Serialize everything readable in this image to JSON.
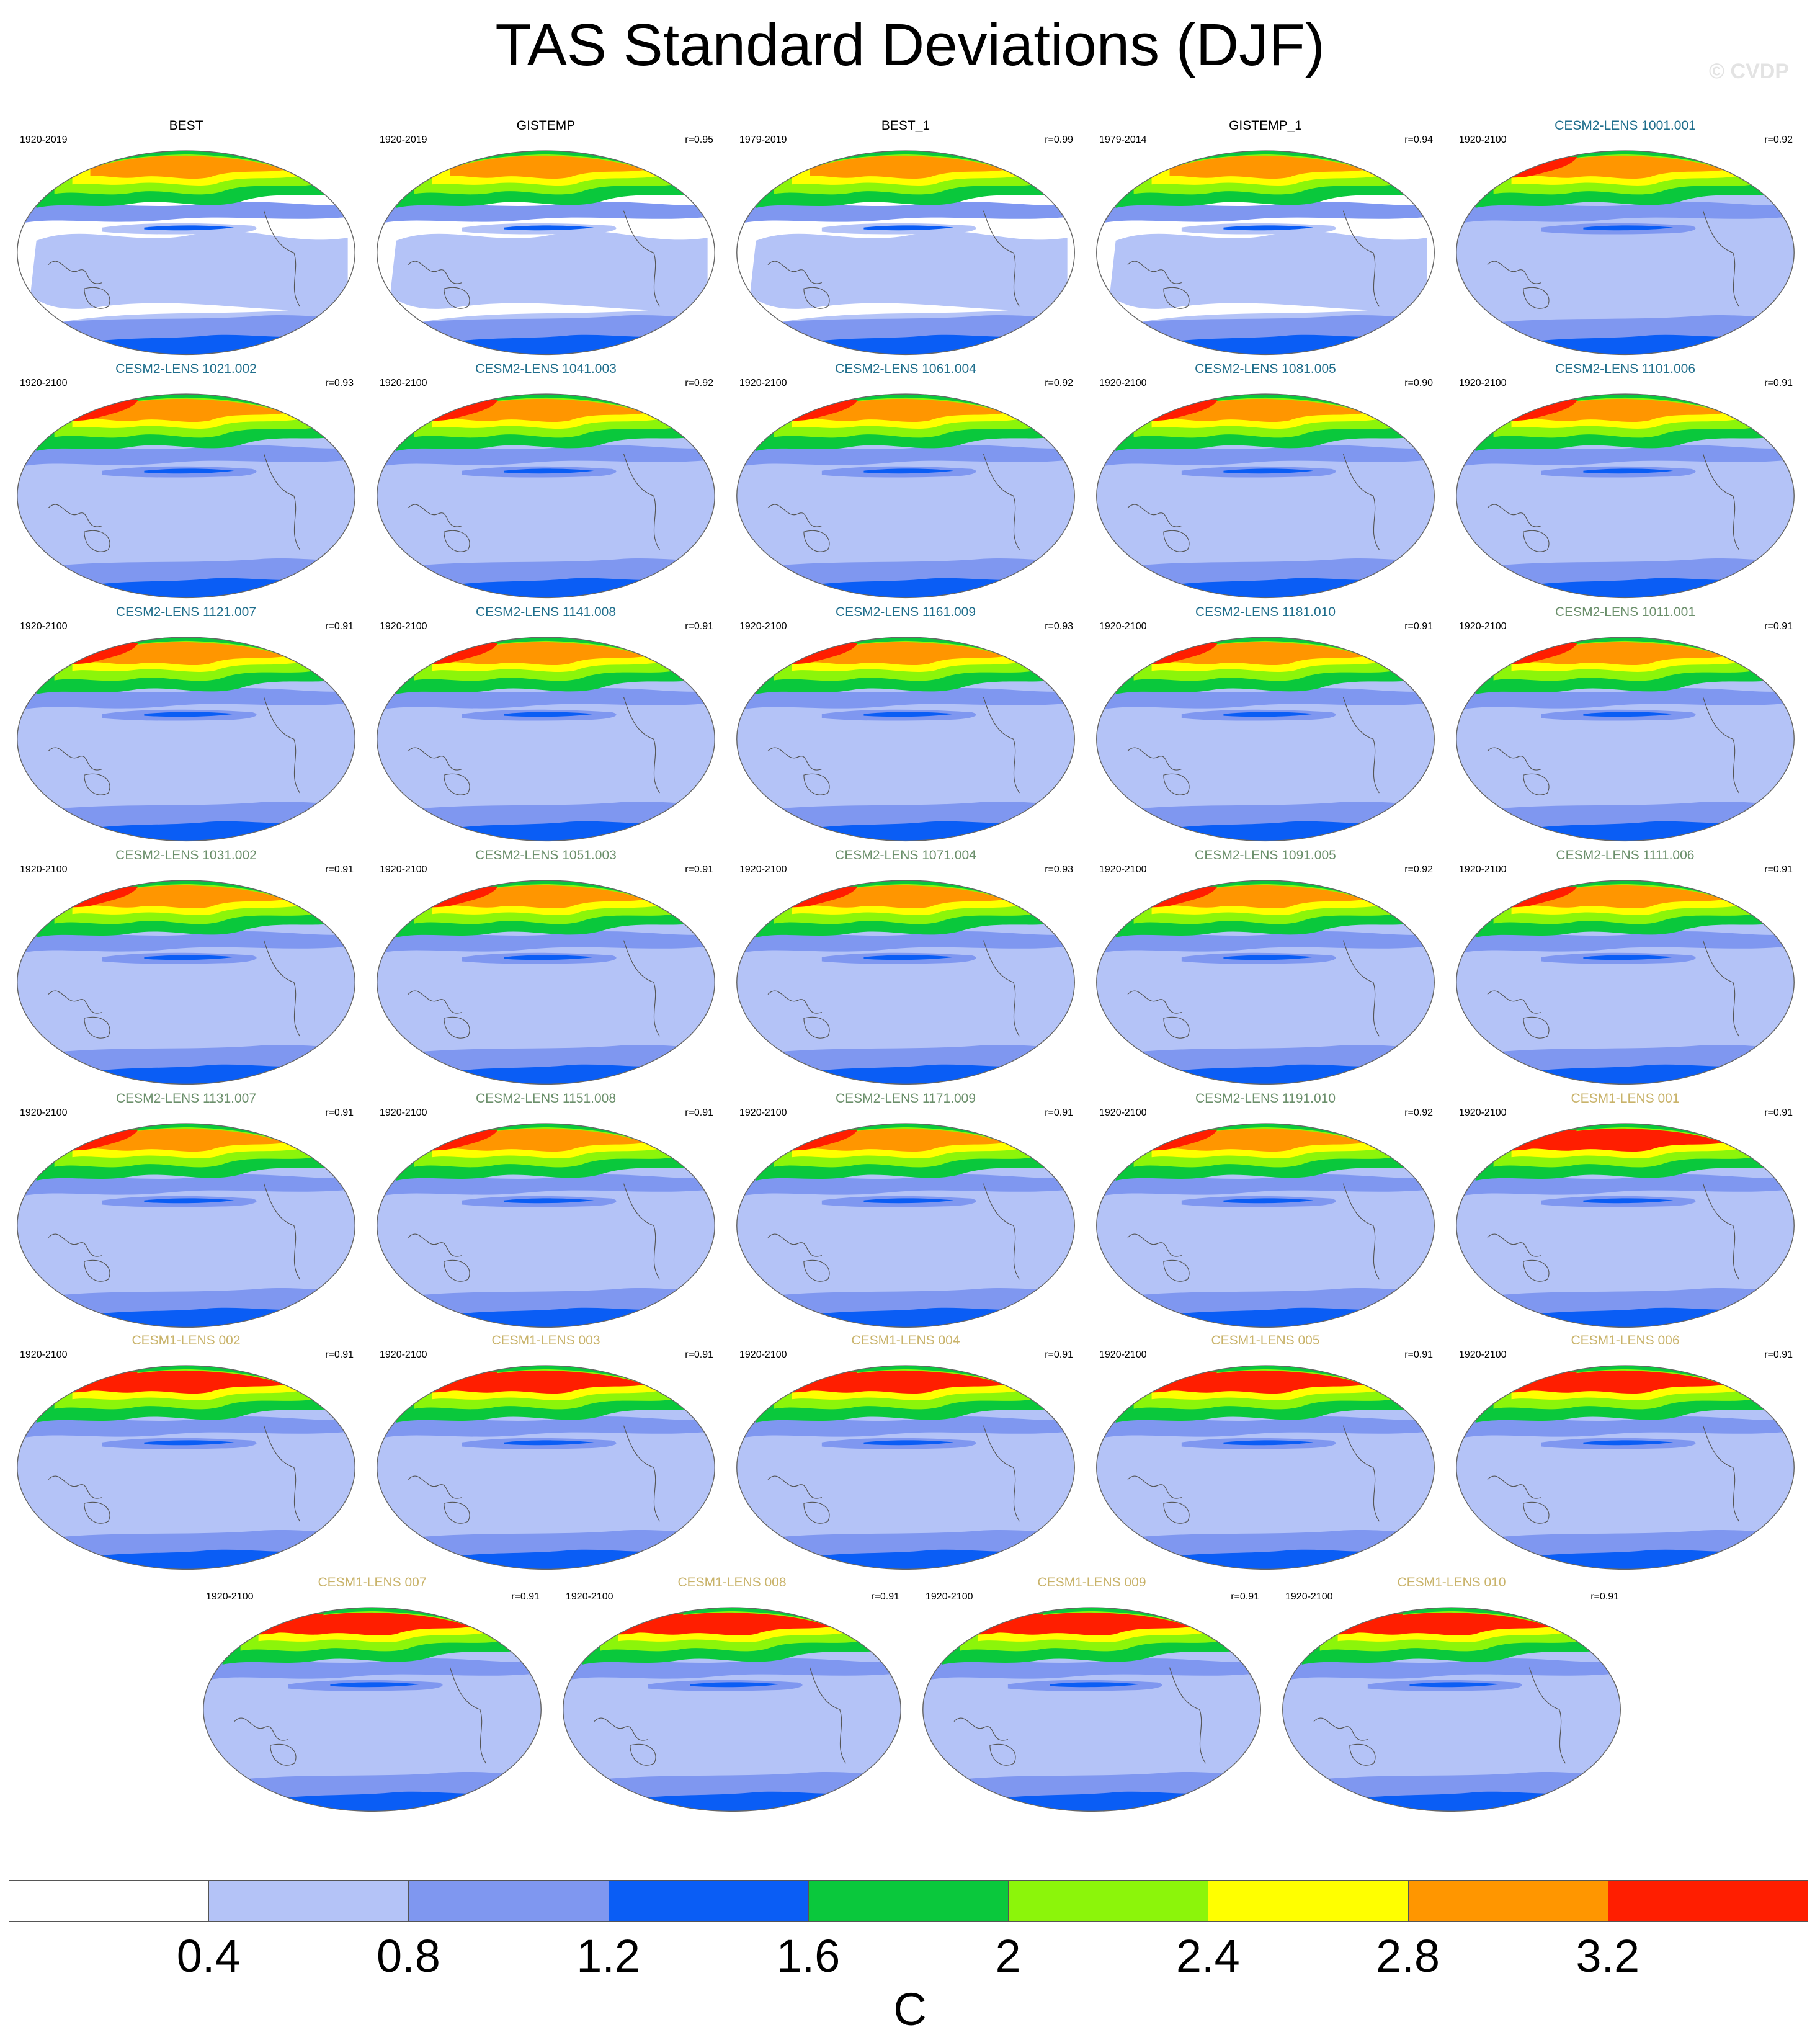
{
  "title": "TAS Standard Deviations (DJF)",
  "watermark": "© CVDP",
  "panels": [
    {
      "name": "BEST",
      "years": "1920-2019",
      "r": "",
      "name_color": "#000000",
      "type": "obs"
    },
    {
      "name": "GISTEMP",
      "years": "1920-2019",
      "r": "r=0.95",
      "name_color": "#000000",
      "type": "obs"
    },
    {
      "name": "BEST_1",
      "years": "1979-2019",
      "r": "r=0.99",
      "name_color": "#000000",
      "type": "obs"
    },
    {
      "name": "GISTEMP_1",
      "years": "1979-2014",
      "r": "r=0.94",
      "name_color": "#000000",
      "type": "obs"
    },
    {
      "name": "CESM2-LENS 1001.001",
      "years": "1920-2100",
      "r": "r=0.92",
      "name_color": "#1f6e8c",
      "type": "cesm2"
    },
    {
      "name": "CESM2-LENS 1021.002",
      "years": "1920-2100",
      "r": "r=0.93",
      "name_color": "#1f6e8c",
      "type": "cesm2"
    },
    {
      "name": "CESM2-LENS 1041.003",
      "years": "1920-2100",
      "r": "r=0.92",
      "name_color": "#1f6e8c",
      "type": "cesm2"
    },
    {
      "name": "CESM2-LENS 1061.004",
      "years": "1920-2100",
      "r": "r=0.92",
      "name_color": "#1f6e8c",
      "type": "cesm2"
    },
    {
      "name": "CESM2-LENS 1081.005",
      "years": "1920-2100",
      "r": "r=0.90",
      "name_color": "#1f6e8c",
      "type": "cesm2"
    },
    {
      "name": "CESM2-LENS 1101.006",
      "years": "1920-2100",
      "r": "r=0.91",
      "name_color": "#1f6e8c",
      "type": "cesm2"
    },
    {
      "name": "CESM2-LENS 1121.007",
      "years": "1920-2100",
      "r": "r=0.91",
      "name_color": "#1f6e8c",
      "type": "cesm2"
    },
    {
      "name": "CESM2-LENS 1141.008",
      "years": "1920-2100",
      "r": "r=0.91",
      "name_color": "#1f6e8c",
      "type": "cesm2"
    },
    {
      "name": "CESM2-LENS 1161.009",
      "years": "1920-2100",
      "r": "r=0.93",
      "name_color": "#1f6e8c",
      "type": "cesm2"
    },
    {
      "name": "CESM2-LENS 1181.010",
      "years": "1920-2100",
      "r": "r=0.91",
      "name_color": "#1f6e8c",
      "type": "cesm2"
    },
    {
      "name": "CESM2-LENS 1011.001",
      "years": "1920-2100",
      "r": "r=0.91",
      "name_color": "#6b8f6b",
      "type": "cesm2"
    },
    {
      "name": "CESM2-LENS 1031.002",
      "years": "1920-2100",
      "r": "r=0.91",
      "name_color": "#6b8f6b",
      "type": "cesm2"
    },
    {
      "name": "CESM2-LENS 1051.003",
      "years": "1920-2100",
      "r": "r=0.91",
      "name_color": "#6b8f6b",
      "type": "cesm2"
    },
    {
      "name": "CESM2-LENS 1071.004",
      "years": "1920-2100",
      "r": "r=0.93",
      "name_color": "#6b8f6b",
      "type": "cesm2"
    },
    {
      "name": "CESM2-LENS 1091.005",
      "years": "1920-2100",
      "r": "r=0.92",
      "name_color": "#6b8f6b",
      "type": "cesm2"
    },
    {
      "name": "CESM2-LENS 1111.006",
      "years": "1920-2100",
      "r": "r=0.91",
      "name_color": "#6b8f6b",
      "type": "cesm2"
    },
    {
      "name": "CESM2-LENS 1131.007",
      "years": "1920-2100",
      "r": "r=0.91",
      "name_color": "#6b8f6b",
      "type": "cesm2"
    },
    {
      "name": "CESM2-LENS 1151.008",
      "years": "1920-2100",
      "r": "r=0.91",
      "name_color": "#6b8f6b",
      "type": "cesm2"
    },
    {
      "name": "CESM2-LENS 1171.009",
      "years": "1920-2100",
      "r": "r=0.91",
      "name_color": "#6b8f6b",
      "type": "cesm2"
    },
    {
      "name": "CESM2-LENS 1191.010",
      "years": "1920-2100",
      "r": "r=0.92",
      "name_color": "#6b8f6b",
      "type": "cesm2"
    },
    {
      "name": "CESM1-LENS 001",
      "years": "1920-2100",
      "r": "r=0.91",
      "name_color": "#c9b36a",
      "type": "cesm1"
    },
    {
      "name": "CESM1-LENS 002",
      "years": "1920-2100",
      "r": "r=0.91",
      "name_color": "#c9b36a",
      "type": "cesm1"
    },
    {
      "name": "CESM1-LENS 003",
      "years": "1920-2100",
      "r": "r=0.91",
      "name_color": "#c9b36a",
      "type": "cesm1"
    },
    {
      "name": "CESM1-LENS 004",
      "years": "1920-2100",
      "r": "r=0.91",
      "name_color": "#c9b36a",
      "type": "cesm1"
    },
    {
      "name": "CESM1-LENS 005",
      "years": "1920-2100",
      "r": "r=0.91",
      "name_color": "#c9b36a",
      "type": "cesm1"
    },
    {
      "name": "CESM1-LENS 006",
      "years": "1920-2100",
      "r": "r=0.91",
      "name_color": "#c9b36a",
      "type": "cesm1"
    },
    {
      "name": "CESM1-LENS 007",
      "years": "1920-2100",
      "r": "r=0.91",
      "name_color": "#c9b36a",
      "type": "cesm1"
    },
    {
      "name": "CESM1-LENS 008",
      "years": "1920-2100",
      "r": "r=0.91",
      "name_color": "#c9b36a",
      "type": "cesm1"
    },
    {
      "name": "CESM1-LENS 009",
      "years": "1920-2100",
      "r": "r=0.91",
      "name_color": "#c9b36a",
      "type": "cesm1"
    },
    {
      "name": "CESM1-LENS 010",
      "years": "1920-2100",
      "r": "r=0.91",
      "name_color": "#c9b36a",
      "type": "cesm1"
    }
  ],
  "colorbar": {
    "colors": [
      "#ffffff",
      "#b4c3f7",
      "#7f97f0",
      "#0a5df5",
      "#0ac83c",
      "#8cf50a",
      "#ffff00",
      "#ff9600",
      "#ff1e00"
    ],
    "labels": [
      "0.4",
      "0.8",
      "1.2",
      "1.6",
      "2",
      "2.4",
      "2.8",
      "3.2"
    ],
    "unit": "C"
  }
}
